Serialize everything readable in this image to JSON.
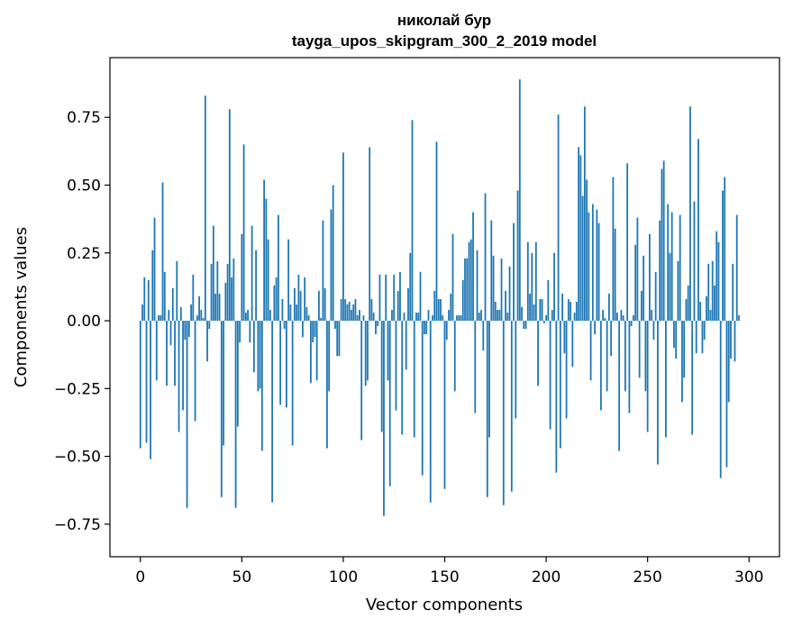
{
  "chart_data": {
    "type": "bar",
    "title_line1": "николай бур",
    "title_line2": "tayga_upos_skipgram_300_2_2019 model",
    "xlabel": "Vector components",
    "ylabel": "Components values",
    "xlim": [
      -15,
      315
    ],
    "ylim": [
      -0.87,
      0.97
    ],
    "x_ticks": [
      0,
      50,
      100,
      150,
      200,
      250,
      300
    ],
    "x_tick_labels": [
      "0",
      "50",
      "100",
      "150",
      "200",
      "250",
      "300"
    ],
    "y_ticks": [
      0.75,
      0.5,
      0.25,
      0.0,
      -0.25,
      -0.5,
      -0.75
    ],
    "y_tick_labels": [
      "0.75",
      "0.50",
      "0.25",
      "0.00",
      "−0.25",
      "−0.50",
      "−0.75"
    ],
    "bar_color": "#1f77b4",
    "values": [
      -0.47,
      0.06,
      0.16,
      -0.45,
      0.15,
      -0.51,
      0.26,
      0.38,
      -0.22,
      0.02,
      0.02,
      0.51,
      0.18,
      -0.24,
      0.04,
      -0.09,
      0.12,
      -0.24,
      0.22,
      -0.41,
      0.05,
      -0.33,
      -0.07,
      -0.69,
      -0.06,
      0.06,
      0.17,
      -0.37,
      0.02,
      0.09,
      0.04,
      0.01,
      0.83,
      -0.15,
      -0.03,
      0.21,
      0.35,
      0.1,
      0.22,
      0.1,
      -0.65,
      -0.46,
      0.14,
      0.21,
      0.78,
      0.16,
      0.23,
      -0.69,
      -0.39,
      -0.08,
      0.32,
      0.65,
      0.03,
      0.04,
      -0.08,
      0.35,
      -0.19,
      0.26,
      -0.26,
      -0.25,
      -0.48,
      0.52,
      0.45,
      0.3,
      0.04,
      -0.67,
      0.13,
      0.16,
      0.39,
      -0.31,
      0.08,
      -0.03,
      -0.32,
      0.3,
      0.06,
      -0.46,
      0.12,
      0.06,
      0.17,
      0.11,
      -0.06,
      0.16,
      0.05,
      0.02,
      -0.23,
      -0.08,
      -0.06,
      -0.22,
      0.11,
      0.01,
      0.37,
      0.12,
      -0.47,
      -0.26,
      0.41,
      0.5,
      -0.03,
      -0.13,
      -0.13,
      0.08,
      0.62,
      0.08,
      0.06,
      0.07,
      0.04,
      0.06,
      0.08,
      0.02,
      0.04,
      -0.44,
      0.02,
      -0.24,
      -0.22,
      0.64,
      0.08,
      0.03,
      -0.05,
      -0.02,
      0.17,
      -0.41,
      -0.72,
      0.17,
      -0.22,
      -0.61,
      0.04,
      0.17,
      -0.33,
      0.11,
      0.18,
      -0.42,
      0.03,
      -0.18,
      0.12,
      0.25,
      0.74,
      -0.43,
      0.03,
      0.03,
      0.18,
      -0.57,
      -0.05,
      -0.05,
      0.04,
      -0.67,
      0.02,
      0.11,
      0.66,
      0.08,
      0.08,
      0.02,
      -0.62,
      -0.07,
      0.04,
      0.1,
      0.32,
      -0.26,
      0.02,
      0.02,
      0.02,
      0.15,
      0.23,
      0.23,
      0.29,
      0.3,
      0.4,
      -0.34,
      0.26,
      0.03,
      0.04,
      -0.11,
      0.47,
      -0.65,
      -0.43,
      0.37,
      0.24,
      0.07,
      0.04,
      0.04,
      0.23,
      -0.68,
      0.11,
      0.03,
      0.2,
      -0.63,
      0.36,
      -0.36,
      0.48,
      0.89,
      0.05,
      -0.03,
      -0.03,
      0.29,
      0.1,
      0.25,
      0.06,
      0.29,
      -0.24,
      0.08,
      0.08,
      -0.01,
      0.02,
      0.15,
      -0.4,
      0.04,
      0.25,
      -0.56,
      0.76,
      -0.47,
      0.1,
      -0.12,
      -0.36,
      0.08,
      0.07,
      -0.17,
      0.03,
      0.07,
      0.64,
      0.61,
      0.46,
      0.79,
      0.52,
      0.4,
      -0.22,
      0.43,
      -0.05,
      0.41,
      0.36,
      -0.33,
      0.04,
      0.01,
      -0.26,
      0.1,
      -0.13,
      0.53,
      0.34,
      0.03,
      -0.48,
      0.04,
      0.02,
      -0.26,
      0.58,
      -0.34,
      -0.02,
      0.02,
      0.28,
      0.38,
      -0.21,
      0.11,
      0.24,
      -0.26,
      -0.41,
      0.32,
      0.04,
      -0.07,
      0.18,
      -0.53,
      0.37,
      0.56,
      0.59,
      -0.43,
      0.43,
      0.25,
      0.4,
      -0.1,
      -0.14,
      0.22,
      0.39,
      -0.3,
      -0.21,
      0.08,
      0.13,
      0.79,
      -0.42,
      0.44,
      -0.12,
      0.67,
      0.07,
      -0.12,
      -0.07,
      0.09,
      0.21,
      0.04,
      0.22,
      0.13,
      0.33,
      0.29,
      -0.58,
      0.48,
      0.53,
      -0.54,
      -0.3,
      -0.14,
      0.21,
      -0.15,
      0.39,
      0.02
    ]
  }
}
